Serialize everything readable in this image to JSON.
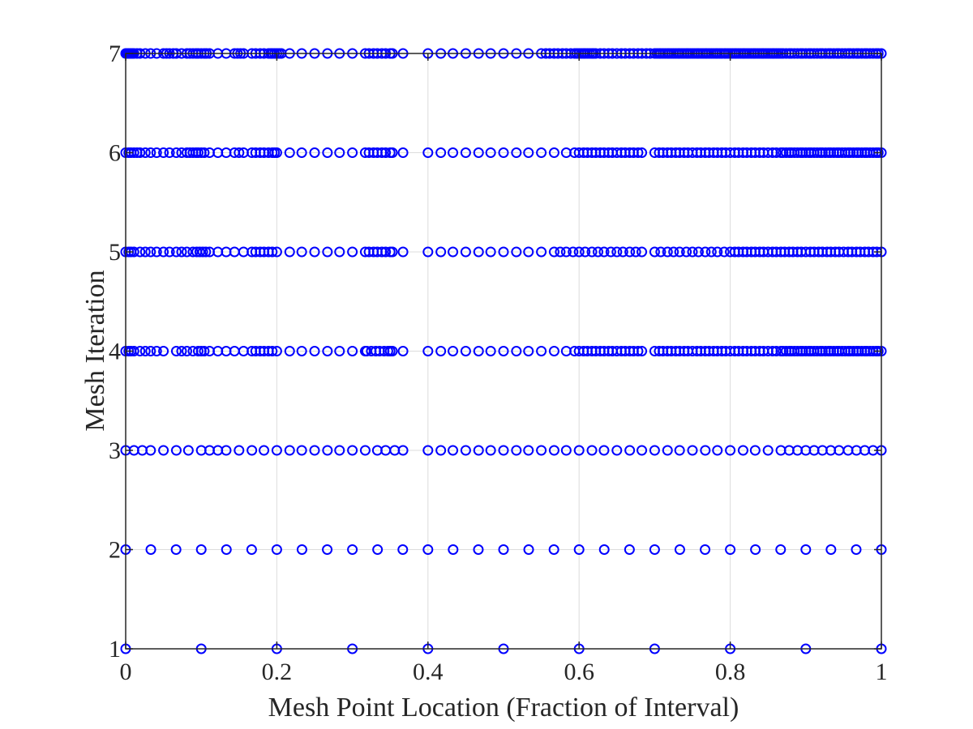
{
  "chart_data": {
    "type": "scatter",
    "xlabel": "Mesh Point Location (Fraction of Interval)",
    "ylabel": "Mesh Iteration",
    "xlim": [
      0,
      1
    ],
    "ylim": [
      1,
      7
    ],
    "xticks": [
      0,
      0.2,
      0.4,
      0.6,
      0.8,
      1
    ],
    "xtick_labels": [
      "0",
      "0.2",
      "0.4",
      "0.6",
      "0.8",
      "1"
    ],
    "yticks": [
      1,
      2,
      3,
      4,
      5,
      6,
      7
    ],
    "ytick_labels": [
      "1",
      "2",
      "3",
      "4",
      "5",
      "6",
      "7"
    ],
    "grid": true,
    "marker": "circle-open",
    "marker_color": "#0000ff",
    "series": [
      {
        "y": 1,
        "x": [
          0,
          0.1,
          0.2,
          0.3,
          0.4,
          0.5,
          0.6,
          0.7,
          0.8,
          0.9,
          1
        ]
      },
      {
        "y": 2,
        "x": [
          0,
          0.0333,
          0.0667,
          0.1,
          0.1333,
          0.1667,
          0.2,
          0.2333,
          0.2667,
          0.3,
          0.3333,
          0.3667,
          0.4,
          0.4333,
          0.4667,
          0.5,
          0.5333,
          0.5667,
          0.6,
          0.6333,
          0.6667,
          0.7,
          0.7333,
          0.7667,
          0.8,
          0.8333,
          0.8667,
          0.9,
          0.9333,
          0.9667,
          1
        ]
      },
      {
        "y": 3,
        "x": [
          0,
          0.011,
          0.022,
          0.033,
          0.05,
          0.067,
          0.083,
          0.1,
          0.111,
          0.122,
          0.133,
          0.15,
          0.167,
          0.183,
          0.2,
          0.217,
          0.233,
          0.25,
          0.267,
          0.283,
          0.3,
          0.317,
          0.333,
          0.344,
          0.356,
          0.367,
          0.4,
          0.417,
          0.433,
          0.45,
          0.467,
          0.483,
          0.5,
          0.517,
          0.533,
          0.55,
          0.567,
          0.583,
          0.6,
          0.617,
          0.633,
          0.65,
          0.667,
          0.683,
          0.7,
          0.717,
          0.733,
          0.75,
          0.767,
          0.783,
          0.8,
          0.817,
          0.833,
          0.85,
          0.867,
          0.878,
          0.889,
          0.9,
          0.911,
          0.922,
          0.933,
          0.944,
          0.956,
          0.967,
          0.978,
          0.989,
          1
        ]
      },
      {
        "y": 4,
        "x": [
          0,
          0.004,
          0.007,
          0.011,
          0.019,
          0.026,
          0.033,
          0.041,
          0.05,
          0.067,
          0.074,
          0.081,
          0.089,
          0.096,
          0.1,
          0.104,
          0.111,
          0.122,
          0.133,
          0.144,
          0.156,
          0.167,
          0.172,
          0.178,
          0.183,
          0.189,
          0.194,
          0.2,
          0.217,
          0.233,
          0.25,
          0.267,
          0.283,
          0.3,
          0.317,
          0.319,
          0.325,
          0.331,
          0.336,
          0.342,
          0.347,
          0.35,
          0.353,
          0.367,
          0.4,
          0.417,
          0.433,
          0.45,
          0.467,
          0.483,
          0.5,
          0.517,
          0.533,
          0.55,
          0.567,
          0.583,
          0.594,
          0.6,
          0.606,
          0.611,
          0.617,
          0.622,
          0.628,
          0.633,
          0.639,
          0.644,
          0.65,
          0.656,
          0.661,
          0.667,
          0.672,
          0.678,
          0.683,
          0.7,
          0.706,
          0.711,
          0.717,
          0.722,
          0.728,
          0.733,
          0.739,
          0.744,
          0.75,
          0.756,
          0.761,
          0.767,
          0.772,
          0.778,
          0.783,
          0.789,
          0.794,
          0.8,
          0.806,
          0.811,
          0.817,
          0.822,
          0.828,
          0.833,
          0.839,
          0.844,
          0.85,
          0.856,
          0.861,
          0.867,
          0.87,
          0.874,
          0.878,
          0.881,
          0.885,
          0.889,
          0.893,
          0.896,
          0.9,
          0.904,
          0.907,
          0.911,
          0.915,
          0.919,
          0.922,
          0.926,
          0.93,
          0.933,
          0.937,
          0.941,
          0.944,
          0.948,
          0.952,
          0.956,
          0.959,
          0.963,
          0.967,
          0.97,
          0.974,
          0.978,
          0.981,
          0.985,
          0.989,
          0.993,
          0.996,
          1
        ]
      },
      {
        "y": 5,
        "x": [
          0,
          0.004,
          0.007,
          0.011,
          0.019,
          0.026,
          0.033,
          0.041,
          0.05,
          0.058,
          0.067,
          0.074,
          0.081,
          0.089,
          0.094,
          0.098,
          0.102,
          0.106,
          0.111,
          0.122,
          0.133,
          0.144,
          0.156,
          0.167,
          0.172,
          0.178,
          0.183,
          0.189,
          0.194,
          0.2,
          0.217,
          0.233,
          0.25,
          0.267,
          0.283,
          0.3,
          0.317,
          0.322,
          0.328,
          0.333,
          0.339,
          0.344,
          0.35,
          0.353,
          0.367,
          0.4,
          0.417,
          0.433,
          0.45,
          0.467,
          0.483,
          0.5,
          0.517,
          0.533,
          0.55,
          0.567,
          0.575,
          0.583,
          0.592,
          0.6,
          0.608,
          0.617,
          0.625,
          0.633,
          0.642,
          0.65,
          0.658,
          0.667,
          0.675,
          0.683,
          0.7,
          0.708,
          0.717,
          0.725,
          0.733,
          0.742,
          0.75,
          0.758,
          0.767,
          0.775,
          0.783,
          0.792,
          0.8,
          0.806,
          0.811,
          0.817,
          0.822,
          0.828,
          0.833,
          0.839,
          0.844,
          0.85,
          0.856,
          0.861,
          0.867,
          0.872,
          0.878,
          0.883,
          0.889,
          0.894,
          0.9,
          0.906,
          0.911,
          0.917,
          0.922,
          0.928,
          0.933,
          0.939,
          0.944,
          0.95,
          0.956,
          0.961,
          0.967,
          0.972,
          0.978,
          0.983,
          0.989,
          0.994,
          1
        ]
      },
      {
        "y": 6,
        "x": [
          0,
          0.004,
          0.007,
          0.011,
          0.015,
          0.019,
          0.026,
          0.033,
          0.041,
          0.05,
          0.058,
          0.067,
          0.074,
          0.081,
          0.085,
          0.089,
          0.093,
          0.096,
          0.1,
          0.104,
          0.111,
          0.122,
          0.133,
          0.144,
          0.15,
          0.156,
          0.167,
          0.172,
          0.178,
          0.183,
          0.189,
          0.194,
          0.197,
          0.2,
          0.217,
          0.233,
          0.25,
          0.267,
          0.283,
          0.3,
          0.317,
          0.322,
          0.328,
          0.333,
          0.339,
          0.344,
          0.35,
          0.353,
          0.367,
          0.4,
          0.417,
          0.433,
          0.45,
          0.467,
          0.483,
          0.5,
          0.517,
          0.533,
          0.55,
          0.567,
          0.583,
          0.594,
          0.6,
          0.606,
          0.611,
          0.617,
          0.622,
          0.628,
          0.633,
          0.639,
          0.644,
          0.65,
          0.656,
          0.661,
          0.667,
          0.672,
          0.678,
          0.683,
          0.7,
          0.706,
          0.711,
          0.717,
          0.722,
          0.728,
          0.733,
          0.739,
          0.744,
          0.75,
          0.756,
          0.761,
          0.767,
          0.772,
          0.778,
          0.783,
          0.789,
          0.794,
          0.8,
          0.806,
          0.811,
          0.817,
          0.822,
          0.828,
          0.833,
          0.839,
          0.844,
          0.85,
          0.856,
          0.861,
          0.867,
          0.87,
          0.874,
          0.878,
          0.881,
          0.885,
          0.889,
          0.893,
          0.896,
          0.9,
          0.904,
          0.907,
          0.911,
          0.915,
          0.919,
          0.922,
          0.926,
          0.93,
          0.933,
          0.937,
          0.941,
          0.944,
          0.948,
          0.952,
          0.956,
          0.959,
          0.963,
          0.967,
          0.97,
          0.974,
          0.978,
          0.981,
          0.985,
          0.989,
          0.993,
          0.996,
          1
        ]
      },
      {
        "y": 7,
        "x": [
          0,
          0.002,
          0.004,
          0.006,
          0.007,
          0.009,
          0.011,
          0.015,
          0.019,
          0.026,
          0.033,
          0.041,
          0.05,
          0.054,
          0.058,
          0.063,
          0.067,
          0.074,
          0.081,
          0.085,
          0.089,
          0.093,
          0.096,
          0.1,
          0.104,
          0.107,
          0.111,
          0.122,
          0.133,
          0.144,
          0.148,
          0.152,
          0.156,
          0.167,
          0.172,
          0.178,
          0.183,
          0.189,
          0.192,
          0.194,
          0.197,
          0.2,
          0.203,
          0.206,
          0.217,
          0.233,
          0.25,
          0.267,
          0.283,
          0.3,
          0.317,
          0.322,
          0.328,
          0.333,
          0.339,
          0.344,
          0.35,
          0.353,
          0.367,
          0.4,
          0.417,
          0.433,
          0.45,
          0.467,
          0.483,
          0.5,
          0.517,
          0.533,
          0.55,
          0.556,
          0.561,
          0.567,
          0.572,
          0.578,
          0.583,
          0.589,
          0.594,
          0.597,
          0.6,
          0.603,
          0.606,
          0.608,
          0.611,
          0.614,
          0.617,
          0.619,
          0.622,
          0.628,
          0.633,
          0.639,
          0.644,
          0.65,
          0.656,
          0.661,
          0.667,
          0.672,
          0.678,
          0.683,
          0.689,
          0.694,
          0.7,
          0.703,
          0.706,
          0.708,
          0.711,
          0.714,
          0.717,
          0.719,
          0.722,
          0.725,
          0.728,
          0.731,
          0.733,
          0.736,
          0.739,
          0.742,
          0.744,
          0.747,
          0.75,
          0.753,
          0.756,
          0.758,
          0.761,
          0.764,
          0.767,
          0.769,
          0.772,
          0.775,
          0.778,
          0.781,
          0.783,
          0.786,
          0.789,
          0.792,
          0.794,
          0.797,
          0.8,
          0.803,
          0.806,
          0.808,
          0.811,
          0.814,
          0.817,
          0.819,
          0.822,
          0.825,
          0.828,
          0.831,
          0.833,
          0.836,
          0.839,
          0.842,
          0.844,
          0.847,
          0.85,
          0.853,
          0.856,
          0.858,
          0.861,
          0.864,
          0.867,
          0.87,
          0.874,
          0.878,
          0.881,
          0.885,
          0.889,
          0.893,
          0.896,
          0.9,
          0.904,
          0.907,
          0.911,
          0.915,
          0.919,
          0.922,
          0.926,
          0.93,
          0.933,
          0.937,
          0.941,
          0.944,
          0.948,
          0.952,
          0.956,
          0.959,
          0.963,
          0.967,
          0.97,
          0.974,
          0.978,
          0.981,
          0.985,
          0.989,
          0.993,
          0.996,
          1
        ]
      }
    ]
  }
}
